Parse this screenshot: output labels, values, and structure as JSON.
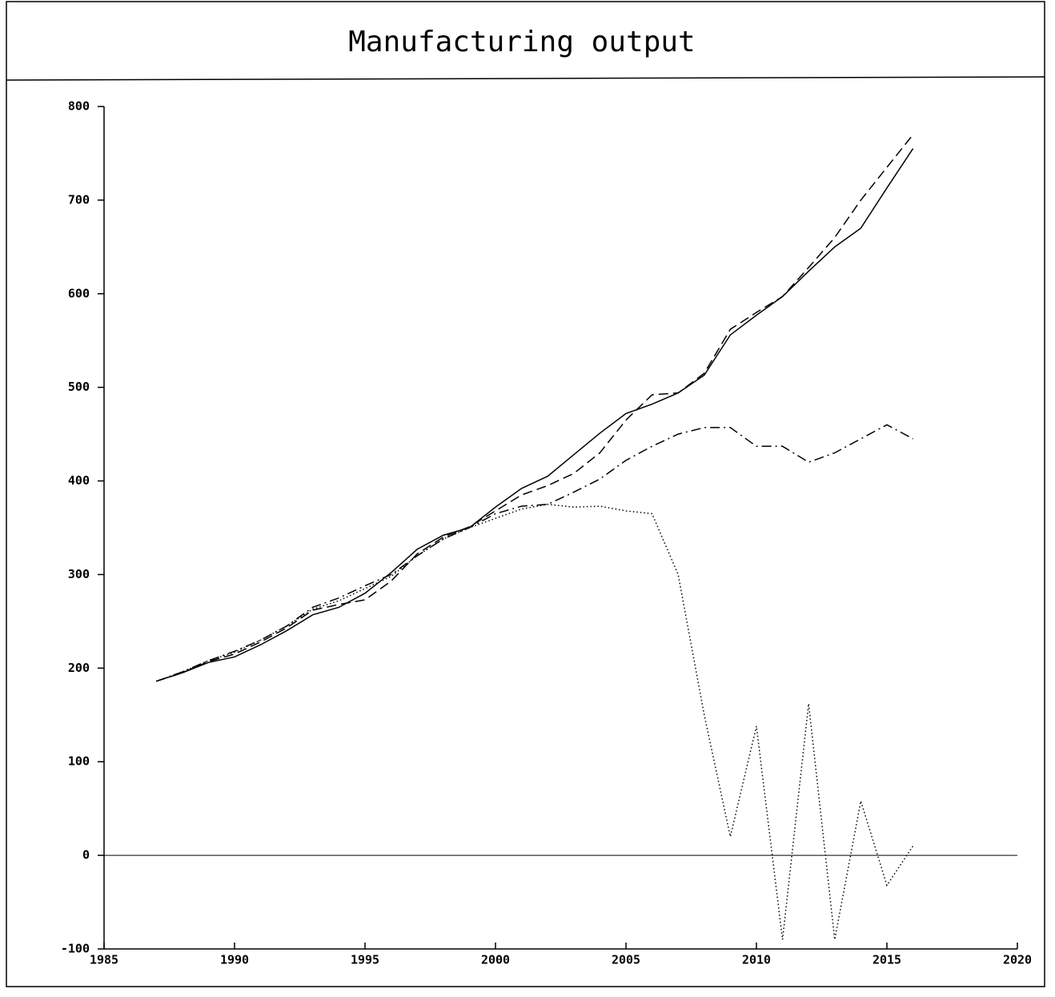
{
  "chart_data": {
    "type": "line",
    "title": "Manufacturing output",
    "x": [
      1987,
      1988,
      1989,
      1990,
      1991,
      1992,
      1993,
      1994,
      1995,
      1996,
      1997,
      1998,
      1999,
      2000,
      2001,
      2002,
      2003,
      2004,
      2005,
      2006,
      2007,
      2008,
      2009,
      2010,
      2011,
      2012,
      2013,
      2014,
      2015,
      2016
    ],
    "series": [
      {
        "color": "#000000",
        "dash": "solid",
        "values": [
          186,
          195,
          206,
          212,
          225,
          240,
          257,
          265,
          280,
          302,
          327,
          342,
          350,
          372,
          392,
          405,
          428,
          451,
          472,
          482,
          494,
          513,
          556,
          577,
          597,
          624,
          650,
          670,
          713,
          755
        ]
      },
      {
        "color": "#000000",
        "dash": "dashed",
        "values": [
          186,
          195,
          207,
          215,
          228,
          243,
          262,
          268,
          273,
          293,
          322,
          340,
          351,
          368,
          385,
          395,
          408,
          430,
          465,
          492,
          494,
          515,
          562,
          580,
          597,
          628,
          660,
          700,
          735,
          770
        ]
      },
      {
        "color": "#000000",
        "dash": "dashdot",
        "values": [
          186,
          196,
          208,
          218,
          230,
          245,
          265,
          275,
          288,
          300,
          320,
          338,
          350,
          365,
          373,
          375,
          388,
          402,
          422,
          437,
          450,
          457,
          457,
          437,
          437,
          420,
          430,
          445,
          460,
          445
        ]
      },
      {
        "color": "#000000",
        "dash": "dotted",
        "values": [
          186,
          196,
          208,
          217,
          230,
          245,
          263,
          272,
          285,
          298,
          320,
          338,
          350,
          360,
          370,
          375,
          372,
          373,
          368,
          365,
          300,
          150,
          20,
          138,
          -90,
          162,
          -90,
          58,
          -32,
          10
        ]
      }
    ],
    "xlim": [
      1985,
      2020
    ],
    "xticks": [
      1985,
      1990,
      1995,
      2000,
      2005,
      2010,
      2015,
      2020
    ],
    "ylim": [
      -100,
      800
    ],
    "yticks": [
      -100,
      0,
      100,
      200,
      300,
      400,
      500,
      600,
      700,
      800
    ],
    "grid": false,
    "zero_line": true
  }
}
